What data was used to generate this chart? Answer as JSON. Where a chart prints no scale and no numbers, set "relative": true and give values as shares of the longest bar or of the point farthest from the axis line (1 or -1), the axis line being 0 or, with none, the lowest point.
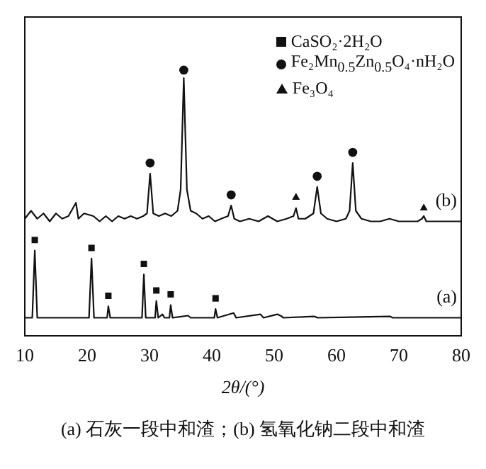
{
  "chart_data": {
    "type": "line",
    "relative": true,
    "xlabel": "2θ/(°)",
    "xlim": [
      10,
      80
    ],
    "xticks": [
      10,
      20,
      30,
      40,
      50,
      60,
      70,
      80
    ],
    "tick_labels": "x",
    "grid": false,
    "legend": "top right",
    "line_style": "solid",
    "marker": "none",
    "annotations": [
      "(a)",
      "(b)",
      "(a) 石灰一段中和渣；(b) 氢氧化钠二段中和渣"
    ],
    "series": [
      {
        "color": "#111111",
        "x": [
          10,
          11.2,
          11.6,
          12.0,
          20.3,
          20.7,
          21.1,
          23.2,
          23.4,
          23.7,
          28.8,
          29.1,
          29.4,
          30.9,
          31.1,
          31.4,
          32.1,
          32.4,
          33.2,
          33.4,
          33.7,
          36.2,
          36.6,
          40.4,
          40.6,
          40.9,
          43.5,
          43.9,
          47.8,
          48.3,
          50.5,
          51.0,
          51.5,
          56.4,
          57,
          68.6,
          69,
          80
        ],
        "values": [
          0.067,
          0.067,
          0.32,
          0.067,
          0.067,
          0.29,
          0.067,
          0.067,
          0.11,
          0.067,
          0.067,
          0.23,
          0.067,
          0.067,
          0.13,
          0.067,
          0.08,
          0.067,
          0.067,
          0.115,
          0.067,
          0.075,
          0.067,
          0.067,
          0.1,
          0.067,
          0.085,
          0.067,
          0.08,
          0.067,
          0.08,
          0.075,
          0.067,
          0.072,
          0.067,
          0.072,
          0.067,
          0.067
        ]
      },
      {
        "color": "#111111",
        "x": [
          10,
          11,
          12,
          13,
          14,
          15,
          16,
          17,
          18.2,
          18.6,
          19.5,
          21,
          22,
          23,
          24,
          25,
          26,
          27,
          28,
          29,
          29.6,
          30.1,
          30.6,
          31.5,
          32.5,
          33.5,
          34.5,
          35.0,
          35.5,
          36.0,
          36.6,
          37.5,
          38.5,
          39.5,
          40.5,
          41.5,
          42.6,
          43.1,
          43.6,
          44.5,
          46,
          47.5,
          49,
          50.5,
          52,
          53.1,
          53.5,
          53.9,
          55,
          56.3,
          56.9,
          57.5,
          58.5,
          60,
          61.5,
          62.1,
          62.6,
          63.1,
          64,
          65.5,
          67,
          68.5,
          70,
          71.5,
          73,
          73.7,
          74.0,
          74.4,
          76,
          78,
          80
        ],
        "values": [
          0.44,
          0.47,
          0.44,
          0.46,
          0.43,
          0.46,
          0.44,
          0.45,
          0.5,
          0.44,
          0.46,
          0.45,
          0.43,
          0.45,
          0.43,
          0.45,
          0.44,
          0.45,
          0.44,
          0.45,
          0.46,
          0.61,
          0.46,
          0.45,
          0.46,
          0.45,
          0.47,
          0.55,
          0.97,
          0.55,
          0.47,
          0.46,
          0.44,
          0.45,
          0.43,
          0.44,
          0.45,
          0.49,
          0.44,
          0.43,
          0.44,
          0.43,
          0.45,
          0.43,
          0.44,
          0.45,
          0.48,
          0.44,
          0.44,
          0.46,
          0.56,
          0.46,
          0.44,
          0.43,
          0.44,
          0.47,
          0.65,
          0.47,
          0.44,
          0.43,
          0.43,
          0.44,
          0.43,
          0.43,
          0.43,
          0.44,
          0.45,
          0.43,
          0.43,
          0.43,
          0.43
        ]
      },
      {
        "type": "scatter",
        "name": "CaSO₂·2H₂O",
        "marker": "square",
        "color": "#111111",
        "x": [
          11.6,
          20.7,
          23.4,
          29.1,
          31.1,
          33.4,
          40.6
        ],
        "values": [
          0.36,
          0.33,
          0.15,
          0.27,
          0.17,
          0.155,
          0.14
        ]
      },
      {
        "type": "scatter",
        "name": "Fe₂Mn$_{0.5}$Zn$_{0.5}$O₄·nH₂O",
        "marker": "circle",
        "color": "#111111",
        "x": [
          30.1,
          35.5,
          43.1,
          56.9,
          62.6
        ],
        "values": [
          0.65,
          1,
          0.53,
          0.6,
          0.69
        ]
      },
      {
        "type": "scatter",
        "name": "Fe₃O₄",
        "marker": "triangle",
        "color": "#111111",
        "x": [
          53.5,
          74.0
        ],
        "values": [
          0.52,
          0.48
        ]
      }
    ]
  }
}
